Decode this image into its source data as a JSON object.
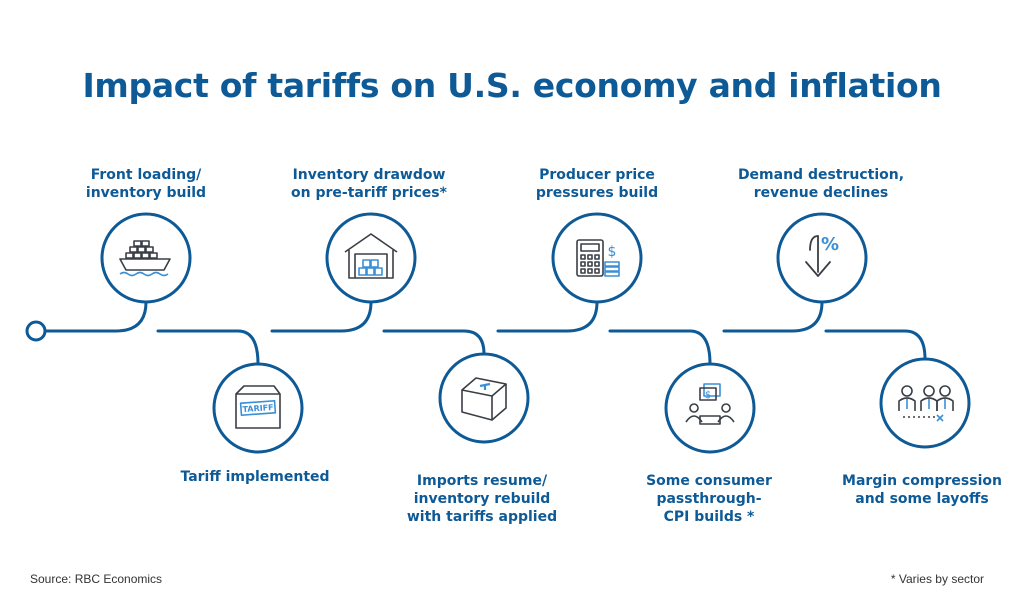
{
  "title": "Impact of tariffs on U.S. economy and inflation",
  "colors": {
    "primary": "#0e5a96",
    "ring": "#0e5a96",
    "icon": "#3a3f46",
    "accent": "#3b8fd6"
  },
  "steps": [
    {
      "lines": [
        "Front loading/",
        "inventory build"
      ],
      "icon": "cargo-ship-icon"
    },
    {
      "lines": [
        "Tariff implemented"
      ],
      "icon": "tariff-box-icon"
    },
    {
      "lines": [
        "Inventory drawdow",
        "on pre-tariff prices*"
      ],
      "icon": "warehouse-icon"
    },
    {
      "lines": [
        "Imports resume/",
        "inventory rebuild",
        "with tariffs applied"
      ],
      "icon": "open-box-icon"
    },
    {
      "lines": [
        "Producer price",
        "pressures build"
      ],
      "icon": "calculator-icon"
    },
    {
      "lines": [
        "Some consumer",
        "passthrough-",
        "CPI builds *"
      ],
      "icon": "consumer-discussion-icon"
    },
    {
      "lines": [
        "Demand destruction,",
        "revenue declines"
      ],
      "icon": "percent-down-icon"
    },
    {
      "lines": [
        "Margin compression",
        "and some layoffs"
      ],
      "icon": "layoffs-icon"
    }
  ],
  "footer": {
    "source": "Source: RBC Economics",
    "note": "* Varies by sector"
  }
}
